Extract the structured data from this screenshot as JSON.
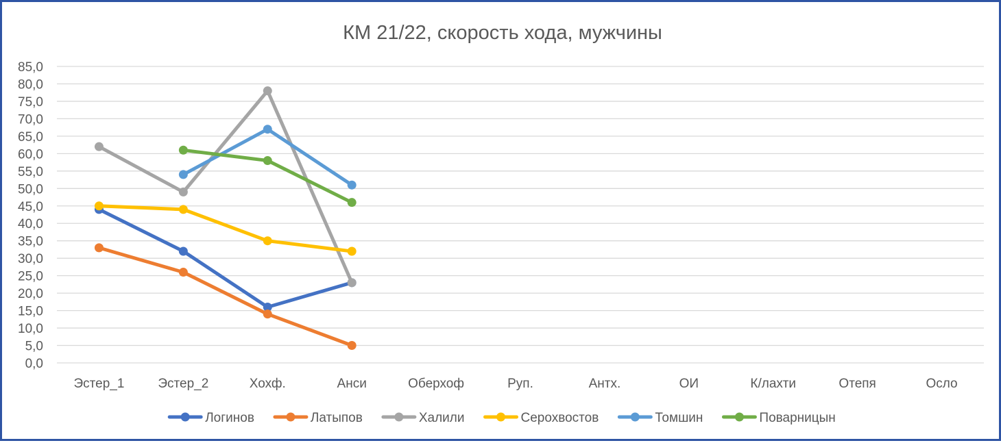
{
  "chart_data": {
    "type": "line",
    "title": "КМ 21/22, скорость хода, мужчины",
    "xlabel": "",
    "ylabel": "",
    "categories": [
      "Эстер_1",
      "Эстер_2",
      "Хохф.",
      "Анси",
      "Оберхоф",
      "Руп.",
      "Антх.",
      "ОИ",
      "К/лахти",
      "Отепя",
      "Осло"
    ],
    "ylim": [
      0,
      85
    ],
    "ytick_step": 5,
    "ytick_labels": [
      "0,0",
      "5,0",
      "10,0",
      "15,0",
      "20,0",
      "25,0",
      "30,0",
      "35,0",
      "40,0",
      "45,0",
      "50,0",
      "55,0",
      "60,0",
      "65,0",
      "70,0",
      "75,0",
      "80,0",
      "85,0"
    ],
    "grid": true,
    "legend_position": "bottom",
    "series": [
      {
        "name": "Логинов",
        "color": "#4472c4",
        "values": [
          44,
          32,
          16,
          23,
          null,
          null,
          null,
          null,
          null,
          null,
          null
        ]
      },
      {
        "name": "Латыпов",
        "color": "#ed7d31",
        "values": [
          33,
          26,
          14,
          5,
          null,
          null,
          null,
          null,
          null,
          null,
          null
        ]
      },
      {
        "name": "Халили",
        "color": "#a5a5a5",
        "values": [
          62,
          49,
          78,
          23,
          null,
          null,
          null,
          null,
          null,
          null,
          null
        ]
      },
      {
        "name": "Серохвостов",
        "color": "#ffc000",
        "values": [
          45,
          44,
          35,
          32,
          null,
          null,
          null,
          null,
          null,
          null,
          null
        ]
      },
      {
        "name": "Томшин",
        "color": "#5b9bd5",
        "values": [
          null,
          54,
          67,
          51,
          null,
          null,
          null,
          null,
          null,
          null,
          null
        ]
      },
      {
        "name": "Поварницын",
        "color": "#70ad47",
        "values": [
          null,
          61,
          58,
          46,
          null,
          null,
          null,
          null,
          null,
          null,
          null
        ]
      }
    ]
  }
}
